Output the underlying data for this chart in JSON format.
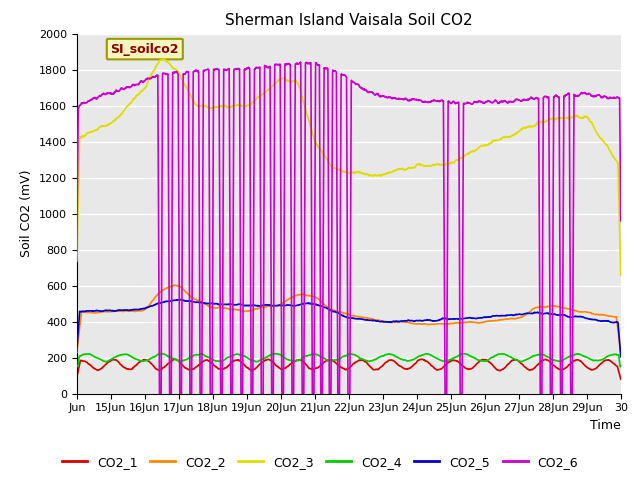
{
  "title": "Sherman Island Vaisala Soil CO2",
  "ylabel": "Soil CO2 (mV)",
  "xlabel": "Time",
  "legend_label": "SI_soilco2",
  "xlim_days": [
    14,
    30
  ],
  "ylim": [
    0,
    2000
  ],
  "yticks": [
    0,
    200,
    400,
    600,
    800,
    1000,
    1200,
    1400,
    1600,
    1800,
    2000
  ],
  "xtick_positions": [
    14,
    15,
    16,
    17,
    18,
    19,
    20,
    21,
    22,
    23,
    24,
    25,
    26,
    27,
    28,
    29,
    30
  ],
  "xtick_labels": [
    "Jun",
    "15Jun",
    "16Jun",
    "17Jun",
    "18Jun",
    "19Jun",
    "20Jun",
    "21Jun",
    "22Jun",
    "23Jun",
    "24Jun",
    "25Jun",
    "26Jun",
    "27Jun",
    "28Jun",
    "29Jun",
    "30"
  ],
  "colors": {
    "CO2_1": "#dd0000",
    "CO2_2": "#ff8800",
    "CO2_3": "#dddd00",
    "CO2_4": "#00cc00",
    "CO2_5": "#0000cc",
    "CO2_6": "#cc00cc"
  },
  "fig_facecolor": "#ffffff",
  "ax_facecolor": "#e8e8e8",
  "grid_color": "#ffffff",
  "linewidth": 1.2
}
